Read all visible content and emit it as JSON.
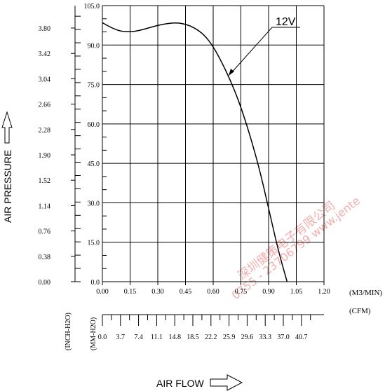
{
  "chart_data": {
    "type": "line",
    "series": [
      {
        "name": "12V",
        "x": [
          0.0,
          0.05,
          0.1,
          0.15,
          0.2,
          0.25,
          0.3,
          0.35,
          0.4,
          0.45,
          0.5,
          0.55,
          0.6,
          0.65,
          0.7,
          0.75,
          0.8,
          0.85,
          0.9,
          0.95,
          1.0
        ],
        "y": [
          98.5,
          96.5,
          95.2,
          95.0,
          95.5,
          96.5,
          97.5,
          98.2,
          98.5,
          98.0,
          96.5,
          94.0,
          89.5,
          83.0,
          75.5,
          66.5,
          55.5,
          43.0,
          28.0,
          12.5,
          0.0
        ]
      }
    ],
    "xlim": [
      0,
      1.2
    ],
    "x_ticks": [
      "0.00",
      "0.15",
      "0.30",
      "0.45",
      "0.60",
      "0.75",
      "0.90",
      "1.05",
      "1.20"
    ],
    "x_unit": "(M3/MIN)",
    "ylim": [
      0,
      105
    ],
    "y_ticks": [
      "0.0",
      "15.0",
      "30.0",
      "45.0",
      "60.0",
      "75.0",
      "90.0",
      "105.0"
    ],
    "y_outer_ticks": [
      "0.00",
      "0.38",
      "0.76",
      "1.14",
      "1.52",
      "1.90",
      "2.28",
      "2.66",
      "3.04",
      "3.42",
      "3.80"
    ],
    "cfm_unit": "(CFM)",
    "cfm_ticks": [
      "0.0",
      "3.7",
      "7.4",
      "11.1",
      "14.8",
      "18.5",
      "22.2",
      "25.9",
      "29.6",
      "33.3",
      "37.0",
      "40.7"
    ],
    "unit_inch": "(INCH-H2O)",
    "unit_mm": "(MM-H2O)",
    "ylabel": "AIR PRESSURE",
    "xlabel": "AIR FLOW",
    "curve_label": "12V",
    "grid": true
  },
  "watermark": {
    "line1": "深圳健策电子有限公司",
    "line2": "0755 - 23706799 www.jente"
  }
}
